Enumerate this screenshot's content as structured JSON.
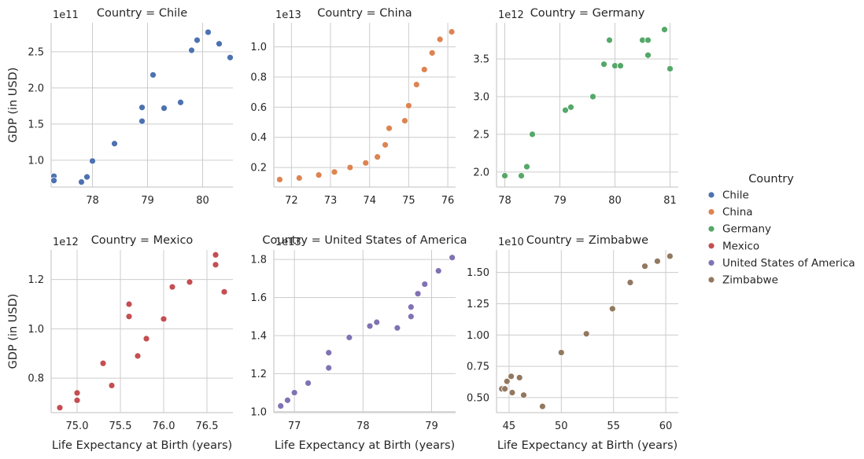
{
  "chart_data": {
    "type": "scatter",
    "facet_by": "Country",
    "x_label": "Life Expectancy at Birth (years)",
    "y_label": "GDP (in USD)",
    "legend": {
      "title": "Country",
      "position": "right",
      "entries": [
        "Chile",
        "China",
        "Germany",
        "Mexico",
        "United States of America",
        "Zimbabwe"
      ]
    },
    "colors": {
      "Chile": "#4c72b0",
      "China": "#dd8452",
      "Germany": "#55a868",
      "Mexico": "#c44e52",
      "United States of America": "#8172b3",
      "Zimbabwe": "#937860"
    },
    "grid": true,
    "panels": [
      {
        "title": "Country = Chile",
        "series": "Chile",
        "y_offset_label": "1e11",
        "xlim": [
          77.25,
          80.55
        ],
        "ylim": [
          0.63,
          2.9
        ],
        "x_ticks": [
          78,
          79,
          80
        ],
        "x_tick_labels": [
          "78",
          "79",
          "80"
        ],
        "y_ticks": [
          1.0,
          1.5,
          2.0,
          2.5
        ],
        "y_tick_labels": [
          "1.0",
          "1.5",
          "2.0",
          "2.5"
        ],
        "points": [
          [
            77.3,
            0.78
          ],
          [
            77.3,
            0.72
          ],
          [
            77.8,
            0.7
          ],
          [
            77.9,
            0.77
          ],
          [
            78.0,
            0.99
          ],
          [
            78.4,
            1.23
          ],
          [
            78.9,
            1.73
          ],
          [
            78.9,
            1.54
          ],
          [
            79.1,
            2.18
          ],
          [
            79.3,
            1.72
          ],
          [
            79.6,
            1.8
          ],
          [
            79.8,
            2.52
          ],
          [
            79.9,
            2.66
          ],
          [
            80.1,
            2.77
          ],
          [
            80.3,
            2.61
          ],
          [
            80.5,
            2.42
          ]
        ]
      },
      {
        "title": "Country = China",
        "series": "China",
        "y_offset_label": "1e13",
        "xlim": [
          71.55,
          76.2
        ],
        "ylim": [
          0.07,
          1.16
        ],
        "x_ticks": [
          72,
          73,
          74,
          75,
          76
        ],
        "x_tick_labels": [
          "72",
          "73",
          "74",
          "75",
          "76"
        ],
        "y_ticks": [
          0.2,
          0.4,
          0.6,
          0.8,
          1.0
        ],
        "y_tick_labels": [
          "0.2",
          "0.4",
          "0.6",
          "0.8",
          "1.0"
        ],
        "points": [
          [
            71.7,
            0.12
          ],
          [
            72.2,
            0.13
          ],
          [
            72.7,
            0.15
          ],
          [
            73.1,
            0.17
          ],
          [
            73.5,
            0.2
          ],
          [
            73.9,
            0.23
          ],
          [
            74.2,
            0.27
          ],
          [
            74.4,
            0.35
          ],
          [
            74.5,
            0.46
          ],
          [
            74.9,
            0.51
          ],
          [
            75.0,
            0.61
          ],
          [
            75.2,
            0.75
          ],
          [
            75.4,
            0.85
          ],
          [
            75.6,
            0.96
          ],
          [
            75.8,
            1.05
          ],
          [
            76.1,
            1.1
          ]
        ]
      },
      {
        "title": "Country = Germany",
        "series": "Germany",
        "y_offset_label": "1e12",
        "xlim": [
          77.85,
          81.15
        ],
        "ylim": [
          1.8,
          3.98
        ],
        "x_ticks": [
          78,
          79,
          80,
          81
        ],
        "x_tick_labels": [
          "78",
          "79",
          "80",
          "81"
        ],
        "y_ticks": [
          2.0,
          2.5,
          3.0,
          3.5
        ],
        "y_tick_labels": [
          "2.0",
          "2.5",
          "3.0",
          "3.5"
        ],
        "points": [
          [
            78.0,
            1.95
          ],
          [
            78.3,
            1.95
          ],
          [
            78.4,
            2.07
          ],
          [
            78.5,
            2.5
          ],
          [
            79.1,
            2.82
          ],
          [
            79.2,
            2.86
          ],
          [
            79.6,
            3.0
          ],
          [
            79.8,
            3.43
          ],
          [
            79.9,
            3.75
          ],
          [
            80.0,
            3.41
          ],
          [
            80.1,
            3.41
          ],
          [
            80.5,
            3.75
          ],
          [
            80.6,
            3.75
          ],
          [
            80.6,
            3.55
          ],
          [
            80.9,
            3.89
          ],
          [
            81.0,
            3.37
          ]
        ]
      },
      {
        "title": "Country = Mexico",
        "series": "Mexico",
        "y_offset_label": "1e12",
        "xlim": [
          74.7,
          76.8
        ],
        "ylim": [
          0.66,
          1.32
        ],
        "x_ticks": [
          75.0,
          75.5,
          76.0,
          76.5
        ],
        "x_tick_labels": [
          "75.0",
          "75.5",
          "76.0",
          "76.5"
        ],
        "y_ticks": [
          0.8,
          1.0,
          1.2
        ],
        "y_tick_labels": [
          "0.8",
          "1.0",
          "1.2"
        ],
        "points": [
          [
            74.8,
            0.68
          ],
          [
            75.0,
            0.71
          ],
          [
            75.0,
            0.74
          ],
          [
            75.3,
            0.86
          ],
          [
            75.4,
            0.77
          ],
          [
            75.6,
            1.05
          ],
          [
            75.6,
            1.1
          ],
          [
            75.7,
            0.89
          ],
          [
            75.8,
            0.96
          ],
          [
            76.0,
            1.04
          ],
          [
            76.1,
            1.17
          ],
          [
            76.3,
            1.19
          ],
          [
            76.6,
            1.3
          ],
          [
            76.6,
            1.26
          ],
          [
            76.7,
            1.15
          ]
        ]
      },
      {
        "title": "Country = United States of America",
        "series": "United States of America",
        "y_offset_label": "1e13",
        "xlim": [
          76.7,
          79.35
        ],
        "ylim": [
          0.995,
          1.85
        ],
        "x_ticks": [
          77,
          78,
          79
        ],
        "x_tick_labels": [
          "77",
          "78",
          "79"
        ],
        "y_ticks": [
          1.0,
          1.2,
          1.4,
          1.6,
          1.8
        ],
        "y_tick_labels": [
          "1.0",
          "1.2",
          "1.4",
          "1.6",
          "1.8"
        ],
        "points": [
          [
            76.8,
            1.03
          ],
          [
            76.9,
            1.06
          ],
          [
            77.0,
            1.1
          ],
          [
            77.2,
            1.15
          ],
          [
            77.5,
            1.23
          ],
          [
            77.5,
            1.31
          ],
          [
            77.8,
            1.39
          ],
          [
            78.1,
            1.45
          ],
          [
            78.2,
            1.47
          ],
          [
            78.5,
            1.44
          ],
          [
            78.7,
            1.5
          ],
          [
            78.7,
            1.55
          ],
          [
            78.8,
            1.62
          ],
          [
            78.9,
            1.67
          ],
          [
            79.1,
            1.74
          ],
          [
            79.3,
            1.81
          ]
        ]
      },
      {
        "title": "Country = Zimbabwe",
        "series": "Zimbabwe",
        "y_offset_label": "1e10",
        "xlim": [
          43.8,
          61.2
        ],
        "ylim": [
          0.38,
          1.68
        ],
        "x_ticks": [
          45,
          50,
          55,
          60
        ],
        "x_tick_labels": [
          "45",
          "50",
          "55",
          "60"
        ],
        "y_ticks": [
          0.5,
          0.75,
          1.0,
          1.25,
          1.5
        ],
        "y_tick_labels": [
          "0.50",
          "0.75",
          "1.00",
          "1.25",
          "1.50"
        ],
        "points": [
          [
            44.3,
            0.57
          ],
          [
            44.6,
            0.57
          ],
          [
            44.8,
            0.63
          ],
          [
            45.2,
            0.67
          ],
          [
            45.3,
            0.54
          ],
          [
            46.0,
            0.66
          ],
          [
            46.4,
            0.52
          ],
          [
            48.2,
            0.43
          ],
          [
            50.0,
            0.86
          ],
          [
            52.4,
            1.01
          ],
          [
            54.9,
            1.21
          ],
          [
            56.6,
            1.42
          ],
          [
            58.0,
            1.55
          ],
          [
            59.2,
            1.59
          ],
          [
            60.4,
            1.63
          ]
        ]
      }
    ]
  }
}
